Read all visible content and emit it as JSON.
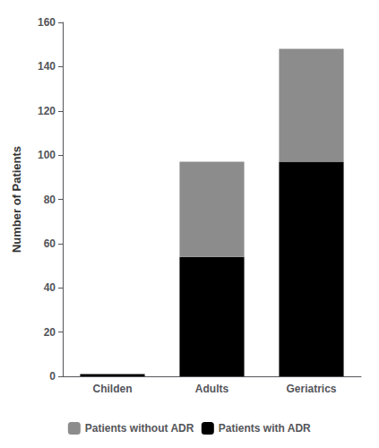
{
  "chart_data": {
    "type": "bar",
    "categories": [
      "Childen",
      "Adults",
      "Geriatrics"
    ],
    "series": [
      {
        "name": "Patients with ADR",
        "color": "#000000",
        "values": [
          1,
          54,
          97
        ]
      },
      {
        "name": "Patients without ADR",
        "color": "#8c8c8c",
        "values": [
          0,
          43,
          51
        ]
      }
    ],
    "ylabel": "Number of Patients",
    "ylim": [
      0,
      160
    ],
    "yticks": [
      0,
      20,
      40,
      60,
      80,
      100,
      120,
      140,
      160
    ],
    "stacked": true,
    "grid": false,
    "legend": "bottom"
  }
}
